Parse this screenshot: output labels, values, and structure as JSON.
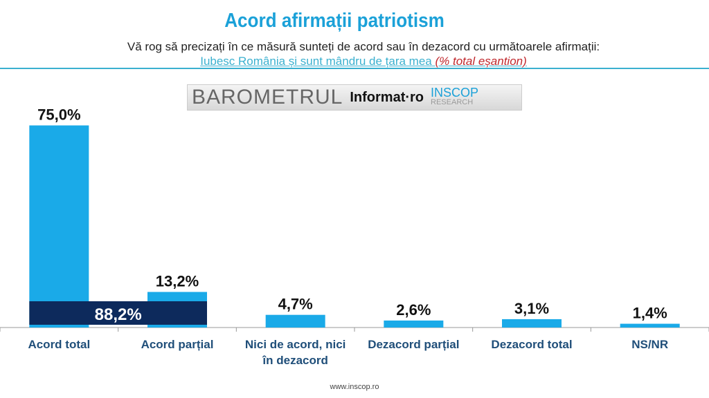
{
  "header": {
    "title": "Acord afirmații patriotism",
    "question": "Vă rog să precizați în ce măsură sunteți de acord sau în dezacord cu următoarele afirmații:",
    "statement": "Iubesc România și sunt mândru de țara mea",
    "note": "(% total eșantion)"
  },
  "logo": {
    "barometru": "BAROMETRUL",
    "informat": "Informat·ro",
    "inscop": "INSCOP",
    "research": "RESEARCH"
  },
  "footer": "www.inscop.ro",
  "chart_data": {
    "type": "bar",
    "categories": [
      "Acord total",
      "Acord parțial",
      "Nici de acord, nici în dezacord",
      "Dezacord parțial",
      "Dezacord total",
      "NS/NR"
    ],
    "values": [
      75.0,
      13.2,
      4.7,
      2.6,
      3.1,
      1.4
    ],
    "labels": [
      "75,0%",
      "13,2%",
      "4,7%",
      "2,6%",
      "3,1%",
      "1,4%"
    ],
    "combined": {
      "categories": [
        "Acord total",
        "Acord parțial"
      ],
      "value": 88.2,
      "label": "88,2%"
    },
    "colors": {
      "bar": "#1aaae8",
      "combined": "#0d2a5c"
    }
  }
}
